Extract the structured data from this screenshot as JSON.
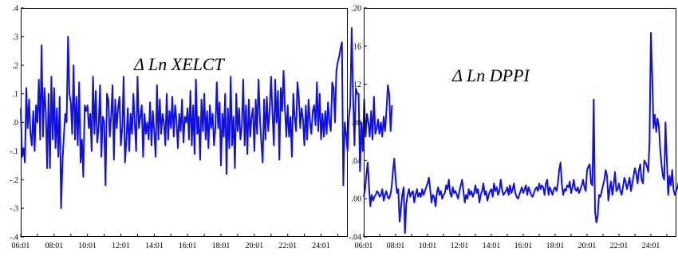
{
  "chart_data": [
    {
      "type": "line",
      "title": "Δ Ln XELCT",
      "xlabel": "",
      "ylabel": "",
      "xlim": [
        2006,
        2025.6
      ],
      "ylim": [
        -0.4,
        0.4
      ],
      "yticks": [
        -0.4,
        -0.3,
        -0.2,
        -0.1,
        0.0,
        0.1,
        0.2,
        0.3,
        0.4
      ],
      "ytick_labels": [
        "-.4",
        "-.3",
        "-.2",
        "-.1",
        ".0",
        ".1",
        ".2",
        ".3",
        ".4"
      ],
      "xtick_labels": [
        "06:01",
        "08:01",
        "10:01",
        "12:01",
        "14:01",
        "16:01",
        "18:01",
        "20:01",
        "22:01",
        "24:01"
      ],
      "grid": false,
      "series": [
        {
          "color": "#1010e0",
          "x_start": "2006:01",
          "frequency": "monthly",
          "values": [
            0.05,
            -0.12,
            -0.09,
            -0.14,
            0.12,
            -0.02,
            0.08,
            -0.04,
            -0.08,
            0.04,
            -0.1,
            0.06,
            0.0,
            0.15,
            -0.06,
            0.27,
            -0.05,
            0.12,
            0.04,
            -0.16,
            0.1,
            -0.16,
            0.16,
            -0.06,
            0.12,
            -0.09,
            0.05,
            -0.12,
            0.09,
            -0.3,
            -0.14,
            -0.05,
            0.03,
            0.0,
            0.3,
            0.1,
            0.07,
            -0.04,
            0.2,
            -0.06,
            0.09,
            -0.08,
            0.14,
            -0.14,
            -0.06,
            -0.19,
            0.06,
            0.04,
            0.06,
            -0.02,
            0.03,
            -0.1,
            0.16,
            -0.04,
            0.11,
            -0.07,
            -0.02,
            0.13,
            -0.12,
            0.02,
            0.0,
            -0.22,
            0.1,
            0.08,
            -0.05,
            0.02,
            0.13,
            -0.13,
            0.08,
            -0.02,
            0.05,
            0.09,
            -0.08,
            -0.02,
            0.16,
            -0.14,
            -0.06,
            0.05,
            -0.1,
            0.03,
            -0.04,
            0.1,
            0.0,
            -0.1,
            0.16,
            -0.02,
            0.02,
            0.06,
            -0.12,
            0.03,
            -0.04,
            0.0,
            -0.06,
            0.07,
            -0.08,
            0.04,
            -0.03,
            -0.12,
            0.13,
            -0.06,
            0.08,
            -0.04,
            0.03,
            0.0,
            -0.08,
            0.1,
            -0.06,
            0.04,
            -0.02,
            0.09,
            -0.05,
            0.06,
            0.01,
            -0.09,
            0.03,
            -0.03,
            0.08,
            -0.07,
            0.02,
            0.0,
            0.05,
            -0.06,
            0.11,
            -0.08,
            0.06,
            -0.11,
            0.15,
            -0.04,
            0.02,
            -0.13,
            0.08,
            -0.03,
            0.1,
            -0.06,
            0.04,
            -0.09,
            0.06,
            -0.02,
            0.03,
            -0.08,
            -0.02,
            0.14,
            -0.02,
            0.07,
            -0.15,
            0.03,
            -0.05,
            0.1,
            -0.18,
            0.05,
            -0.09,
            0.16,
            -0.08,
            0.02,
            -0.16,
            0.1,
            -0.03,
            0.05,
            -0.06,
            -0.01,
            0.15,
            -0.08,
            0.06,
            -0.11,
            0.08,
            -0.05,
            0.02,
            0.05,
            -0.1,
            0.08,
            -0.04,
            0.15,
            0.02,
            -0.07,
            -0.14,
            0.08,
            -0.06,
            0.09,
            -0.03,
            0.04,
            0.16,
            0.04,
            -0.08,
            0.15,
            0.0,
            0.11,
            -0.13,
            0.12,
            0.04,
            0.18,
            0.05,
            -0.05,
            0.06,
            -0.05,
            0.02,
            -0.12,
            0.1,
            0.02,
            -0.03,
            0.14,
            0.09,
            -0.02,
            0.05,
            0.01,
            -0.08,
            0.06,
            -0.06,
            0.08,
            0.0,
            -0.04,
            0.04,
            0.06,
            -0.01,
            0.14,
            -0.03,
            0.1,
            -0.06,
            0.03,
            -0.05,
            0.04,
            -0.04,
            0.07,
            0.0,
            -0.03,
            0.14,
            0.12,
            0.0,
            0.18,
            0.21,
            0.23,
            0.26,
            0.28,
            -0.22,
            0.0,
            -0.04,
            -0.1,
            0.02,
            0.06,
            0.33,
            0.1,
            -0.08,
            0.12,
            0.1,
            0.1,
            -0.17,
            0.0,
            -0.1,
            0.08,
            -0.05,
            0.03,
            0.0,
            -0.05,
            0.04,
            -0.06,
            0.09,
            -0.04,
            -0.02,
            0.01,
            -0.04,
            0.0,
            -0.05,
            0.02,
            -0.03,
            0.04,
            0.13,
            0.1,
            -0.03,
            0.06
          ]
        }
      ]
    },
    {
      "type": "line",
      "title": "Δ Ln DPPI",
      "xlabel": "",
      "ylabel": "",
      "xlim": [
        2006,
        2025.6
      ],
      "ylim": [
        -0.04,
        0.2
      ],
      "yticks": [
        -0.04,
        0.0,
        0.04,
        0.08,
        0.12,
        0.16,
        0.2
      ],
      "ytick_labels": [
        "-.04",
        ".00",
        ".04",
        ".08",
        ".12",
        ".16",
        ".20"
      ],
      "xtick_labels": [
        "06:01",
        "08:01",
        "10:01",
        "12:01",
        "14:01",
        "16:01",
        "18:01",
        "20:01",
        "22:01",
        "24:01"
      ],
      "grid": false,
      "series": [
        {
          "color": "#1010e0",
          "x_start": "2006:01",
          "frequency": "monthly",
          "values": [
            0.002,
            0.01,
            0.025,
            0.038,
            0.012,
            -0.008,
            0.004,
            -0.002,
            0.002,
            0.004,
            0.008,
            0.006,
            0.002,
            0.004,
            0.01,
            -0.002,
            0.004,
            0.008,
            0.002,
            0.0,
            0.004,
            0.012,
            0.03,
            0.042,
            0.02,
            0.006,
            0.01,
            -0.024,
            -0.01,
            0.004,
            0.012,
            -0.036,
            -0.006,
            0.004,
            0.01,
            0.002,
            0.006,
            0.008,
            -0.004,
            0.004,
            0.01,
            0.002,
            0.006,
            0.002,
            0.01,
            0.004,
            0.008,
            0.012,
            0.016,
            0.022,
            0.01,
            -0.004,
            0.004,
            0.002,
            -0.008,
            0.006,
            0.012,
            0.004,
            0.008,
            0.0,
            0.004,
            0.006,
            0.014,
            0.01,
            0.02,
            0.006,
            0.002,
            0.012,
            0.006,
            0.008,
            0.004,
            0.0,
            0.008,
            0.014,
            0.02,
            0.008,
            -0.004,
            0.004,
            0.0,
            0.01,
            0.004,
            0.008,
            0.002,
            0.006,
            0.014,
            0.006,
            0.01,
            -0.004,
            0.004,
            0.008,
            0.016,
            0.004,
            0.008,
            -0.002,
            0.004,
            0.008,
            0.01,
            0.002,
            0.016,
            0.008,
            0.012,
            0.004,
            0.008,
            0.02,
            0.01,
            0.004,
            0.006,
            0.008,
            0.012,
            0.004,
            0.014,
            0.006,
            0.01,
            0.016,
            0.006,
            0.002,
            0.0,
            0.004,
            0.008,
            0.012,
            0.006,
            0.01,
            0.014,
            0.004,
            0.012,
            0.008,
            0.004,
            0.002,
            0.006,
            0.01,
            0.012,
            0.008,
            0.016,
            0.01,
            0.014,
            0.012,
            0.004,
            0.016,
            0.02,
            0.004,
            0.012,
            0.008,
            0.004,
            0.01,
            0.012,
            0.008,
            0.016,
            0.03,
            0.038,
            0.016,
            0.004,
            0.01,
            0.008,
            0.014,
            0.012,
            0.018,
            0.006,
            0.012,
            0.02,
            0.01,
            0.008,
            0.012,
            0.006,
            0.01,
            0.014,
            0.02,
            0.012,
            0.008,
            0.03,
            0.034,
            0.036,
            0.016,
            0.014,
            0.104,
            -0.014,
            -0.025,
            -0.018,
            0.004,
            0.002,
            0.008,
            0.014,
            0.02,
            0.03,
            0.024,
            -0.002,
            0.01,
            0.018,
            0.004,
            0.014,
            0.028,
            0.008,
            0.01,
            0.016,
            0.008,
            0.004,
            0.012,
            0.022,
            0.018,
            0.01,
            0.016,
            0.022,
            0.008,
            0.016,
            0.024,
            0.032,
            0.026,
            0.016,
            0.03,
            0.036,
            0.02,
            0.016,
            0.04,
            0.038,
            0.034,
            0.028,
            0.06,
            0.174,
            0.128,
            0.074,
            0.088,
            0.07,
            0.084,
            0.076,
            0.052,
            0.036,
            0.024,
            0.02,
            0.08,
            0.04,
            0.004,
            0.024,
            0.014,
            0.03,
            0.01,
            0.004,
            0.008,
            0.012,
            0.018,
            0.004,
            0.024,
            0.028,
            0.016,
            0.038,
            0.026,
            0.034,
            0.018,
            0.012,
            0.016,
            0.014,
            0.01,
            0.008,
            0.004,
            0.028,
            0.024,
            0.018,
            0.026,
            0.024,
            0.022,
            0.018,
            0.024,
            0.02
          ]
        }
      ]
    }
  ]
}
